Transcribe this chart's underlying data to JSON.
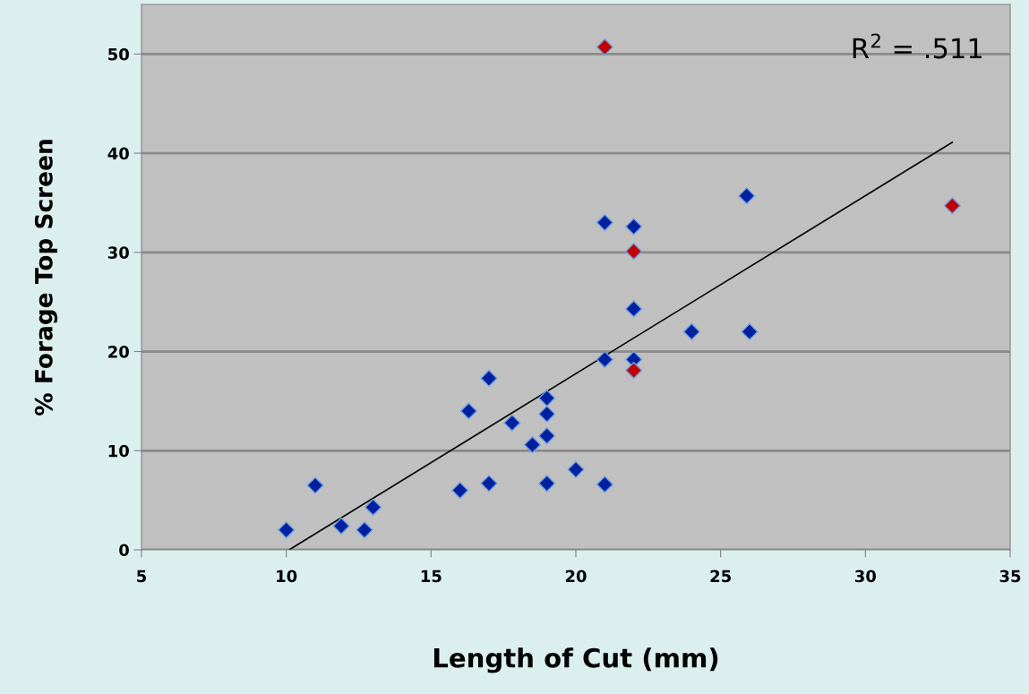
{
  "chart_data": {
    "type": "scatter",
    "xlabel": "Length of Cut (mm)",
    "ylabel": "% Forage Top Screen",
    "xlim": [
      5,
      35
    ],
    "xticks": [
      5,
      10,
      15,
      20,
      25,
      30,
      35
    ],
    "ylim": [
      0,
      55
    ],
    "yticks": [
      0,
      10,
      20,
      30,
      40,
      50
    ],
    "grid": "y",
    "marker": "diamond",
    "legend": false,
    "annotations": [
      "R$^{2}$ = .511"
    ],
    "series": [
      {
        "color": "#0020a0",
        "x": [
          10,
          11,
          11.9,
          12.7,
          13,
          16,
          16.3,
          17,
          17,
          17.8,
          18.5,
          19,
          19,
          19,
          19,
          20,
          21,
          21,
          21,
          22,
          22,
          22,
          24,
          26,
          25.9
        ],
        "values": [
          2,
          6.5,
          2.4,
          2,
          4.3,
          6,
          14,
          17.3,
          6.7,
          12.8,
          10.6,
          15.3,
          13.7,
          11.5,
          6.7,
          8.1,
          33,
          19.2,
          6.6,
          32.6,
          24.3,
          19.2,
          22,
          22,
          35.7
        ]
      },
      {
        "color": "#c00000",
        "x": [
          21,
          22,
          22,
          33
        ],
        "values": [
          50.7,
          30.1,
          18.1,
          34.7
        ]
      },
      {
        "type": "line",
        "color": "#000000",
        "marker": "none",
        "x": [
          10.1,
          33
        ],
        "values": [
          0,
          41.1
        ]
      }
    ]
  }
}
